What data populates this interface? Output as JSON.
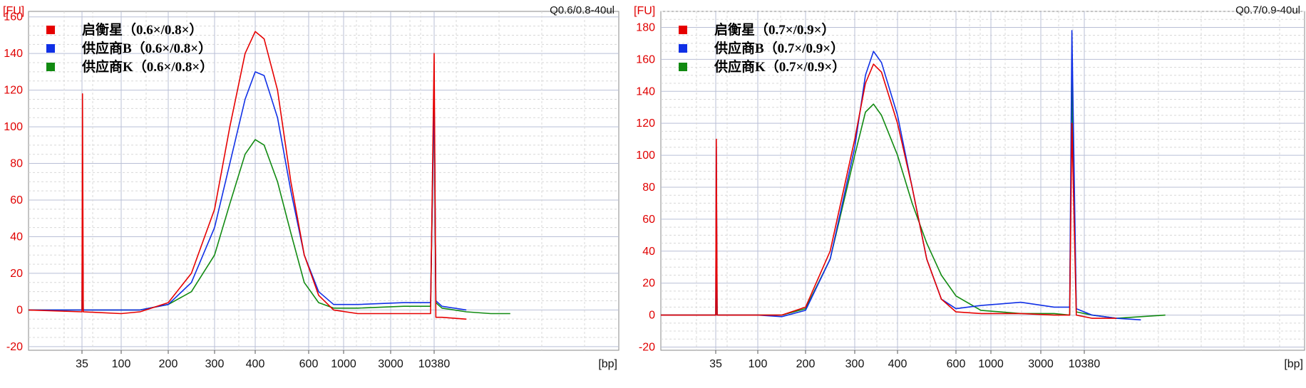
{
  "chart_data": [
    {
      "type": "line",
      "title": "",
      "corner_label": "Q0.6/0.8-40ul",
      "ylabel": "[FU]",
      "xlabel": "[bp]",
      "ylim": [
        -22,
        163
      ],
      "yticks": [
        -20,
        0,
        20,
        40,
        60,
        80,
        100,
        120,
        140,
        160
      ],
      "xticks": [
        "35",
        "100",
        "200",
        "300",
        "400",
        "600",
        "1000",
        "3000",
        "10380"
      ],
      "grid": true,
      "legend_position": "top-left",
      "series": [
        {
          "name": "启衡星（0.6×/0.8×）",
          "color": "#e60000",
          "points": [
            [
              0,
              0
            ],
            [
              0.5,
              -1
            ],
            [
              0.52,
              118
            ],
            [
              0.55,
              -1
            ],
            [
              2,
              -2
            ],
            [
              2.4,
              -1
            ],
            [
              3,
              4
            ],
            [
              3.5,
              20
            ],
            [
              4,
              55
            ],
            [
              4.3,
              100
            ],
            [
              4.6,
              140
            ],
            [
              4.8,
              152
            ],
            [
              5.0,
              148
            ],
            [
              5.3,
              120
            ],
            [
              5.6,
              70
            ],
            [
              5.9,
              30
            ],
            [
              6.2,
              8
            ],
            [
              6.5,
              0
            ],
            [
              7,
              -2
            ],
            [
              8,
              -2
            ],
            [
              8.6,
              -2
            ],
            [
              8.68,
              140
            ],
            [
              8.75,
              -4
            ],
            [
              9,
              -4
            ],
            [
              10,
              -5
            ]
          ]
        },
        {
          "name": "供应商B（0.6×/0.8×）",
          "color": "#1030e6",
          "points": [
            [
              0,
              0
            ],
            [
              0.5,
              0
            ],
            [
              0.52,
              62
            ],
            [
              0.55,
              0
            ],
            [
              2,
              0
            ],
            [
              2.4,
              0
            ],
            [
              3,
              3
            ],
            [
              3.5,
              15
            ],
            [
              4,
              45
            ],
            [
              4.3,
              80
            ],
            [
              4.6,
              115
            ],
            [
              4.8,
              130
            ],
            [
              5.0,
              128
            ],
            [
              5.3,
              105
            ],
            [
              5.6,
              65
            ],
            [
              5.9,
              30
            ],
            [
              6.2,
              10
            ],
            [
              6.5,
              3
            ],
            [
              7,
              3
            ],
            [
              8,
              4
            ],
            [
              8.6,
              4
            ],
            [
              8.68,
              120
            ],
            [
              8.75,
              5
            ],
            [
              9,
              2
            ],
            [
              10,
              0
            ]
          ]
        },
        {
          "name": "供应商K（0.6×/0.8×）",
          "color": "#118a11",
          "points": [
            [
              0,
              0
            ],
            [
              0.5,
              0
            ],
            [
              0.52,
              15
            ],
            [
              0.55,
              0
            ],
            [
              2,
              0
            ],
            [
              2.4,
              0
            ],
            [
              3,
              3
            ],
            [
              3.5,
              10
            ],
            [
              4,
              30
            ],
            [
              4.3,
              58
            ],
            [
              4.6,
              85
            ],
            [
              4.8,
              93
            ],
            [
              5.0,
              90
            ],
            [
              5.3,
              70
            ],
            [
              5.6,
              42
            ],
            [
              5.9,
              15
            ],
            [
              6.2,
              4
            ],
            [
              6.5,
              1
            ],
            [
              7,
              1
            ],
            [
              8,
              2
            ],
            [
              8.6,
              2
            ],
            [
              8.68,
              118
            ],
            [
              8.75,
              4
            ],
            [
              9,
              1
            ],
            [
              10,
              -1
            ],
            [
              11,
              -2
            ],
            [
              11.8,
              -2
            ]
          ]
        }
      ]
    },
    {
      "type": "line",
      "title": "",
      "corner_label": "Q0.7/0.9-40ul",
      "ylabel": "[FU]",
      "xlabel": "[bp]",
      "ylim": [
        -22,
        190
      ],
      "yticks": [
        -20,
        0,
        20,
        40,
        60,
        80,
        100,
        120,
        140,
        160,
        180
      ],
      "xticks": [
        "35",
        "100",
        "200",
        "300",
        "400",
        "600",
        "1000",
        "3000",
        "10380"
      ],
      "grid": true,
      "legend_position": "top-left",
      "series": [
        {
          "name": "启衡星（0.7×/0.9×）",
          "color": "#e60000",
          "points": [
            [
              0,
              0
            ],
            [
              0.5,
              0
            ],
            [
              0.52,
              110
            ],
            [
              0.55,
              0
            ],
            [
              2,
              0
            ],
            [
              2.5,
              0
            ],
            [
              3,
              5
            ],
            [
              3.5,
              40
            ],
            [
              4,
              110
            ],
            [
              4.2,
              145
            ],
            [
              4.35,
              157
            ],
            [
              4.5,
              152
            ],
            [
              4.8,
              120
            ],
            [
              5.1,
              80
            ],
            [
              5.4,
              35
            ],
            [
              5.7,
              10
            ],
            [
              6,
              2
            ],
            [
              6.5,
              1
            ],
            [
              7.3,
              1
            ],
            [
              8,
              0
            ],
            [
              8.35,
              0
            ],
            [
              8.4,
              120
            ],
            [
              8.5,
              0
            ],
            [
              9,
              -2
            ],
            [
              10,
              -2
            ]
          ]
        },
        {
          "name": "供应商B（0.7×/0.9×）",
          "color": "#1030e6",
          "points": [
            [
              0,
              0
            ],
            [
              0.5,
              0
            ],
            [
              0.52,
              105
            ],
            [
              0.55,
              0
            ],
            [
              2,
              0
            ],
            [
              2.5,
              -1
            ],
            [
              3,
              3
            ],
            [
              3.5,
              35
            ],
            [
              4,
              105
            ],
            [
              4.2,
              150
            ],
            [
              4.35,
              165
            ],
            [
              4.5,
              158
            ],
            [
              4.8,
              125
            ],
            [
              5.1,
              80
            ],
            [
              5.4,
              35
            ],
            [
              5.7,
              10
            ],
            [
              6,
              4
            ],
            [
              6.5,
              6
            ],
            [
              7.3,
              8
            ],
            [
              8,
              5
            ],
            [
              8.35,
              5
            ],
            [
              8.4,
              178
            ],
            [
              8.5,
              4
            ],
            [
              9,
              0
            ],
            [
              10,
              -2
            ],
            [
              11,
              -3
            ]
          ]
        },
        {
          "name": "供应商K（0.7×/0.9×）",
          "color": "#118a11",
          "points": [
            [
              0,
              0
            ],
            [
              0.5,
              0
            ],
            [
              0.52,
              30
            ],
            [
              0.55,
              0
            ],
            [
              2,
              0
            ],
            [
              2.5,
              0
            ],
            [
              3,
              4
            ],
            [
              3.5,
              35
            ],
            [
              4,
              100
            ],
            [
              4.2,
              127
            ],
            [
              4.35,
              132
            ],
            [
              4.5,
              125
            ],
            [
              4.8,
              100
            ],
            [
              5.1,
              70
            ],
            [
              5.4,
              45
            ],
            [
              5.7,
              25
            ],
            [
              6,
              12
            ],
            [
              6.5,
              3
            ],
            [
              7.3,
              1
            ],
            [
              8,
              1
            ],
            [
              8.35,
              0
            ],
            [
              8.4,
              148
            ],
            [
              8.5,
              2
            ],
            [
              9,
              0
            ],
            [
              10,
              -2
            ],
            [
              11,
              -1
            ],
            [
              12,
              0
            ]
          ]
        }
      ]
    }
  ]
}
